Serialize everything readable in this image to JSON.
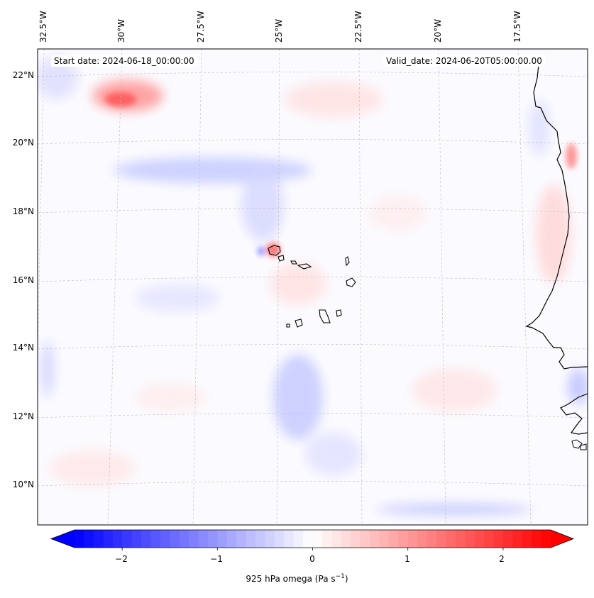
{
  "map": {
    "start_date": "Start date: 2024-06-18_00:00:00",
    "valid_date": "Valid_date: 2024-06-20T05:00:00.00",
    "lon_labels": [
      "32.5°W",
      "30°W",
      "27.5°W",
      "25°W",
      "22.5°W",
      "20°W",
      "17.5°W"
    ],
    "lat_labels": [
      "22°N",
      "20°N",
      "18°N",
      "16°N",
      "14°N",
      "12°N",
      "10°N"
    ],
    "extent": {
      "lon_min": -33.2,
      "lon_max": -15.7,
      "lat_min": 8.9,
      "lat_max": 22.8
    }
  },
  "colorbar": {
    "tick_labels": [
      "−2",
      "−1",
      "0",
      "1",
      "2"
    ],
    "tick_values": [
      -2,
      -1,
      0,
      1,
      2
    ],
    "range": [
      -2.5,
      2.5
    ],
    "label": "925 hPa omega (Pa s",
    "label_sup": "−1",
    "label_end": ")",
    "colors": {
      "negative": "#0000ff",
      "zero": "#ffffff",
      "positive": "#ff0000"
    }
  }
}
